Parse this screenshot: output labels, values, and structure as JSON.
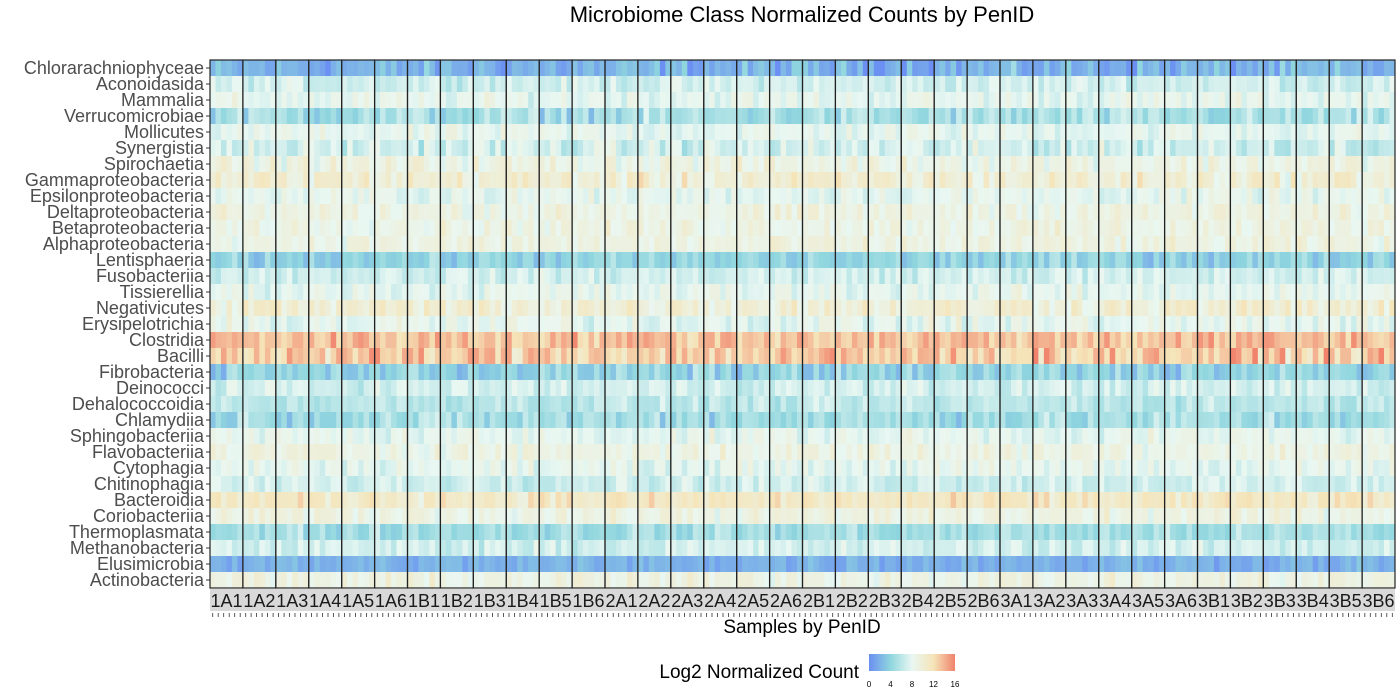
{
  "chart_data": {
    "type": "heatmap",
    "title": "Microbiome Class Normalized Counts by PenID",
    "xlabel": "Samples by PenID",
    "ylabel": "",
    "categories_y": [
      "Chlorarachniophyceae",
      "Aconoidasida",
      "Mammalia",
      "Verrucomicrobiae",
      "Mollicutes",
      "Synergistia",
      "Spirochaetia",
      "Gammaproteobacteria",
      "Epsilonproteobacteria",
      "Deltaproteobacteria",
      "Betaproteobacteria",
      "Alphaproteobacteria",
      "Lentisphaeria",
      "Fusobacteriia",
      "Tissierellia",
      "Negativicutes",
      "Erysipelotrichia",
      "Clostridia",
      "Bacilli",
      "Fibrobacteria",
      "Deinococci",
      "Dehalococcoidia",
      "Chlamydiia",
      "Sphingobacteriia",
      "Flavobacteriia",
      "Cytophagia",
      "Chitinophagia",
      "Bacteroidia",
      "Coriobacteriia",
      "Thermoplasmata",
      "Methanobacteria",
      "Elusimicrobia",
      "Actinobacteria"
    ],
    "pens": [
      "1A1",
      "1A2",
      "1A3",
      "1A4",
      "1A5",
      "1A6",
      "1B1",
      "1B2",
      "1B3",
      "1B4",
      "1B5",
      "1B6",
      "2A1",
      "2A2",
      "2A3",
      "2A4",
      "2A5",
      "2A6",
      "2B1",
      "2B2",
      "2B3",
      "2B4",
      "2B5",
      "2B6",
      "3A1",
      "3A2",
      "3A3",
      "3A4",
      "3A5",
      "3A6",
      "3B1",
      "3B2",
      "3B3",
      "3B4",
      "3B5",
      "3B6"
    ],
    "samples_per_pen": 6,
    "class_mean_log2": [
      2,
      7,
      8,
      5,
      8,
      7,
      9,
      10,
      8,
      9,
      9,
      9,
      4,
      7,
      8,
      10,
      8,
      13.5,
      13,
      4,
      7,
      6,
      5,
      8,
      9,
      8,
      7,
      11,
      9,
      5,
      7,
      2,
      9
    ],
    "class_spread": [
      1.5,
      1,
      1,
      1.5,
      1,
      1.5,
      1.2,
      1.5,
      1,
      1,
      1,
      1,
      1.2,
      1,
      1,
      1.5,
      1.2,
      1.5,
      2,
      1.5,
      1,
      1,
      1.5,
      1,
      1,
      1,
      1,
      1.2,
      1,
      1.2,
      1,
      0.8,
      1
    ],
    "legend": {
      "title": "Log2 Normalized Count",
      "ticks": [
        0,
        4,
        8,
        12,
        16
      ],
      "colors": [
        "#6b8ff2",
        "#8fd6de",
        "#e9f7f2",
        "#f5e4b8",
        "#f1836c"
      ],
      "placement": "bottom"
    },
    "value_range": [
      0,
      16
    ],
    "pen_boxes": true
  }
}
